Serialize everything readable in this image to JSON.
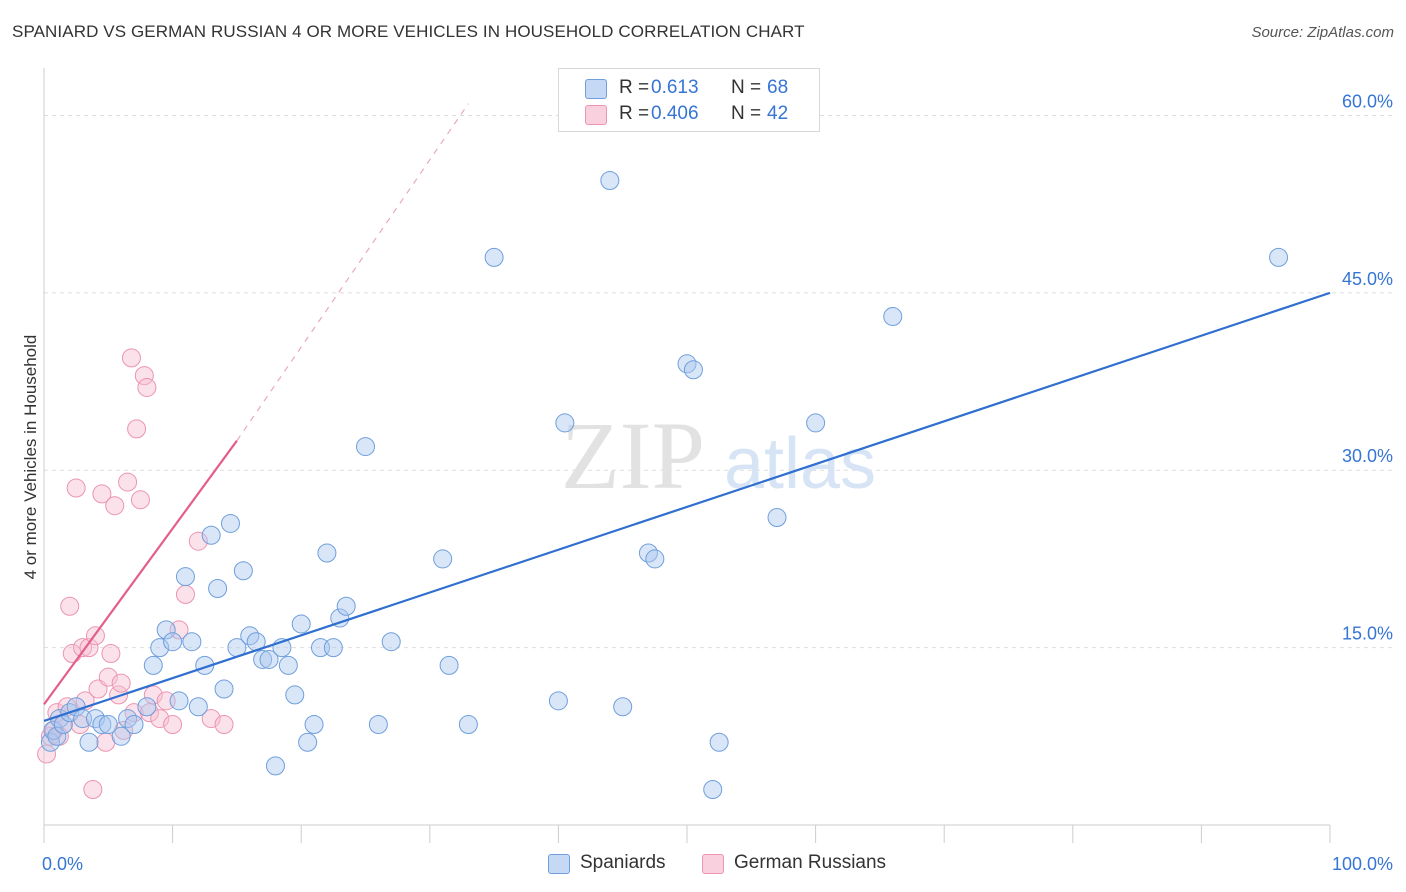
{
  "title": "SPANIARD VS GERMAN RUSSIAN 4 OR MORE VEHICLES IN HOUSEHOLD CORRELATION CHART",
  "source": "Source: ZipAtlas.com",
  "watermark": {
    "zip": "ZIP",
    "atlas": "atlas"
  },
  "legend": {
    "r_label": "R =",
    "n_label": "N =",
    "series": [
      {
        "r": "0.613",
        "n": "68"
      },
      {
        "r": "0.406",
        "n": "42"
      }
    ]
  },
  "colors": {
    "blue_fill": "#aac8f0",
    "blue_stroke": "#6f9fdc",
    "blue_line": "#2f6fcf",
    "pink_fill": "#f7bfd0",
    "pink_stroke": "#ec94b1",
    "pink_line": "#e35e8f",
    "tick_label": "#3575d3",
    "grid": "#dddddd"
  },
  "chart_data": {
    "type": "scatter",
    "title": "SPANIARD VS GERMAN RUSSIAN 4 OR MORE VEHICLES IN HOUSEHOLD CORRELATION CHART",
    "xlabel": "",
    "ylabel": "4 or more Vehicles in Household",
    "xlim": [
      0,
      100
    ],
    "ylim": [
      0,
      63
    ],
    "x_tick_labels": [
      "0.0%",
      "100.0%"
    ],
    "y_ticks": [
      15,
      30,
      45,
      60
    ],
    "y_tick_labels": [
      "15.0%",
      "30.0%",
      "45.0%",
      "60.0%"
    ],
    "series": [
      {
        "name": "Spaniards",
        "points": [
          [
            0.5,
            7
          ],
          [
            0.7,
            8
          ],
          [
            1,
            7.5
          ],
          [
            1.2,
            9
          ],
          [
            1.5,
            8.5
          ],
          [
            2,
            9.5
          ],
          [
            2.5,
            10
          ],
          [
            3,
            9
          ],
          [
            3.5,
            7
          ],
          [
            4,
            9
          ],
          [
            4.5,
            8.5
          ],
          [
            5,
            8.5
          ],
          [
            6,
            7.5
          ],
          [
            6.5,
            9
          ],
          [
            7,
            8.5
          ],
          [
            8,
            10
          ],
          [
            8.5,
            13.5
          ],
          [
            9,
            15
          ],
          [
            9.5,
            16.5
          ],
          [
            10,
            15.5
          ],
          [
            10.5,
            10.5
          ],
          [
            11,
            21
          ],
          [
            11.5,
            15.5
          ],
          [
            12,
            10
          ],
          [
            12.5,
            13.5
          ],
          [
            13,
            24.5
          ],
          [
            13.5,
            20
          ],
          [
            14,
            11.5
          ],
          [
            14.5,
            25.5
          ],
          [
            15,
            15
          ],
          [
            15.5,
            21.5
          ],
          [
            16,
            16
          ],
          [
            16.5,
            15.5
          ],
          [
            17,
            14
          ],
          [
            17.5,
            14
          ],
          [
            18,
            5
          ],
          [
            18.5,
            15
          ],
          [
            19,
            13.5
          ],
          [
            19.5,
            11
          ],
          [
            20,
            17
          ],
          [
            20.5,
            7
          ],
          [
            21,
            8.5
          ],
          [
            21.5,
            15
          ],
          [
            22,
            23
          ],
          [
            22.5,
            15
          ],
          [
            23,
            17.5
          ],
          [
            23.5,
            18.5
          ],
          [
            25,
            32
          ],
          [
            26,
            8.5
          ],
          [
            27,
            15.5
          ],
          [
            31,
            22.5
          ],
          [
            31.5,
            13.5
          ],
          [
            33,
            8.5
          ],
          [
            35,
            48
          ],
          [
            40,
            10.5
          ],
          [
            40.5,
            34
          ],
          [
            44,
            54.5
          ],
          [
            45,
            10
          ],
          [
            47,
            23
          ],
          [
            47.5,
            22.5
          ],
          [
            50,
            39
          ],
          [
            50.5,
            38.5
          ],
          [
            52,
            3
          ],
          [
            52.5,
            7
          ],
          [
            57,
            26
          ],
          [
            60,
            34
          ],
          [
            66,
            43
          ],
          [
            96,
            48
          ]
        ],
        "fit_line": {
          "x": [
            0,
            100
          ],
          "y": [
            8.8,
            45
          ]
        }
      },
      {
        "name": "German Russians",
        "points": [
          [
            0.2,
            6
          ],
          [
            0.5,
            7.5
          ],
          [
            0.8,
            8
          ],
          [
            1,
            9.5
          ],
          [
            1.2,
            7.5
          ],
          [
            1.5,
            8.5
          ],
          [
            1.8,
            10
          ],
          [
            2,
            18.5
          ],
          [
            2.2,
            14.5
          ],
          [
            2.5,
            28.5
          ],
          [
            2.8,
            8.5
          ],
          [
            3,
            15
          ],
          [
            3.2,
            10.5
          ],
          [
            3.5,
            15
          ],
          [
            3.8,
            3
          ],
          [
            4,
            16
          ],
          [
            4.2,
            11.5
          ],
          [
            4.5,
            28
          ],
          [
            4.8,
            7
          ],
          [
            5,
            12.5
          ],
          [
            5.2,
            14.5
          ],
          [
            5.5,
            27
          ],
          [
            5.8,
            11
          ],
          [
            6,
            12
          ],
          [
            6.2,
            8
          ],
          [
            6.5,
            29
          ],
          [
            6.8,
            39.5
          ],
          [
            7,
            9.5
          ],
          [
            7.2,
            33.5
          ],
          [
            7.5,
            27.5
          ],
          [
            7.8,
            38
          ],
          [
            8,
            37
          ],
          [
            8.2,
            9.5
          ],
          [
            8.5,
            11
          ],
          [
            9,
            9
          ],
          [
            9.5,
            10.5
          ],
          [
            10,
            8.5
          ],
          [
            10.5,
            16.5
          ],
          [
            11,
            19.5
          ],
          [
            12,
            24
          ],
          [
            13,
            9
          ],
          [
            14,
            8.5
          ]
        ],
        "fit_line": {
          "x": [
            0,
            15
          ],
          "y": [
            10.2,
            32.5
          ]
        },
        "fit_line_dashed": {
          "x": [
            15,
            33
          ],
          "y": [
            32.5,
            61
          ]
        }
      }
    ]
  },
  "bottom_legend": [
    {
      "label": "Spaniards"
    },
    {
      "label": "German Russians"
    }
  ]
}
